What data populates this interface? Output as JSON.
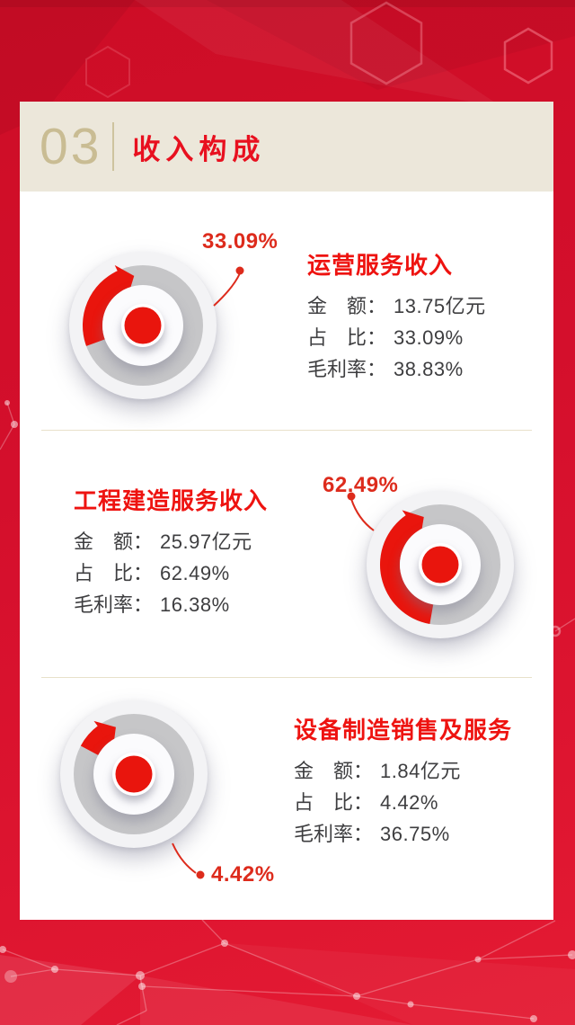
{
  "colors": {
    "page_red": "#d40f2c",
    "accent_red": "#e9150d",
    "title_red": "#ee1310",
    "percent_red": "#dd2b1c",
    "header_bg": "#ece7da",
    "header_number": "#c9bc93",
    "divider": "#e8e1ca",
    "ring_gray": "#c6c6c8",
    "body_text": "#3e3e40"
  },
  "card": {
    "header": {
      "number": "03",
      "title": "收入构成"
    }
  },
  "sections": [
    {
      "name": "运营服务收入",
      "percent_label": "33.09%",
      "rows": [
        {
          "label": "金　额：",
          "value": "13.75亿元"
        },
        {
          "label": "占　比：",
          "value": "33.09%"
        },
        {
          "label": "毛利率：",
          "value": "38.83%"
        }
      ],
      "donut": {
        "percent": 33.09,
        "arc_start": 250,
        "arc_end": 336,
        "arrow_sweep": 14
      }
    },
    {
      "name": "工程建造服务收入",
      "percent_label": "62.49%",
      "rows": [
        {
          "label": "金　额：",
          "value": "25.97亿元"
        },
        {
          "label": "占　比：",
          "value": "62.49%"
        },
        {
          "label": "毛利率：",
          "value": "16.38%"
        }
      ],
      "donut": {
        "percent": 62.49,
        "arc_start": 190,
        "arc_end": 326,
        "arrow_sweep": 15
      }
    },
    {
      "name": "设备制造销售及服务",
      "percent_label": "4.42%",
      "rows": [
        {
          "label": "金　额：",
          "value": "1.84亿元"
        },
        {
          "label": "占　比：",
          "value": "4.42%"
        },
        {
          "label": "毛利率：",
          "value": "36.75%"
        }
      ],
      "donut": {
        "percent": 4.42,
        "arc_start": 298,
        "arc_end": 324,
        "arrow_sweep": 15
      }
    }
  ],
  "chart_data": {
    "type": "pie",
    "title": "收入构成",
    "unit": "亿元",
    "legend_position": "none",
    "series": [
      {
        "name": "运营服务收入",
        "amount": 13.75,
        "share_pct": 33.09,
        "gross_margin_pct": 38.83
      },
      {
        "name": "工程建造服务收入",
        "amount": 25.97,
        "share_pct": 62.49,
        "gross_margin_pct": 16.38
      },
      {
        "name": "设备制造销售及服务",
        "amount": 1.84,
        "share_pct": 4.42,
        "gross_margin_pct": 36.75
      }
    ]
  }
}
